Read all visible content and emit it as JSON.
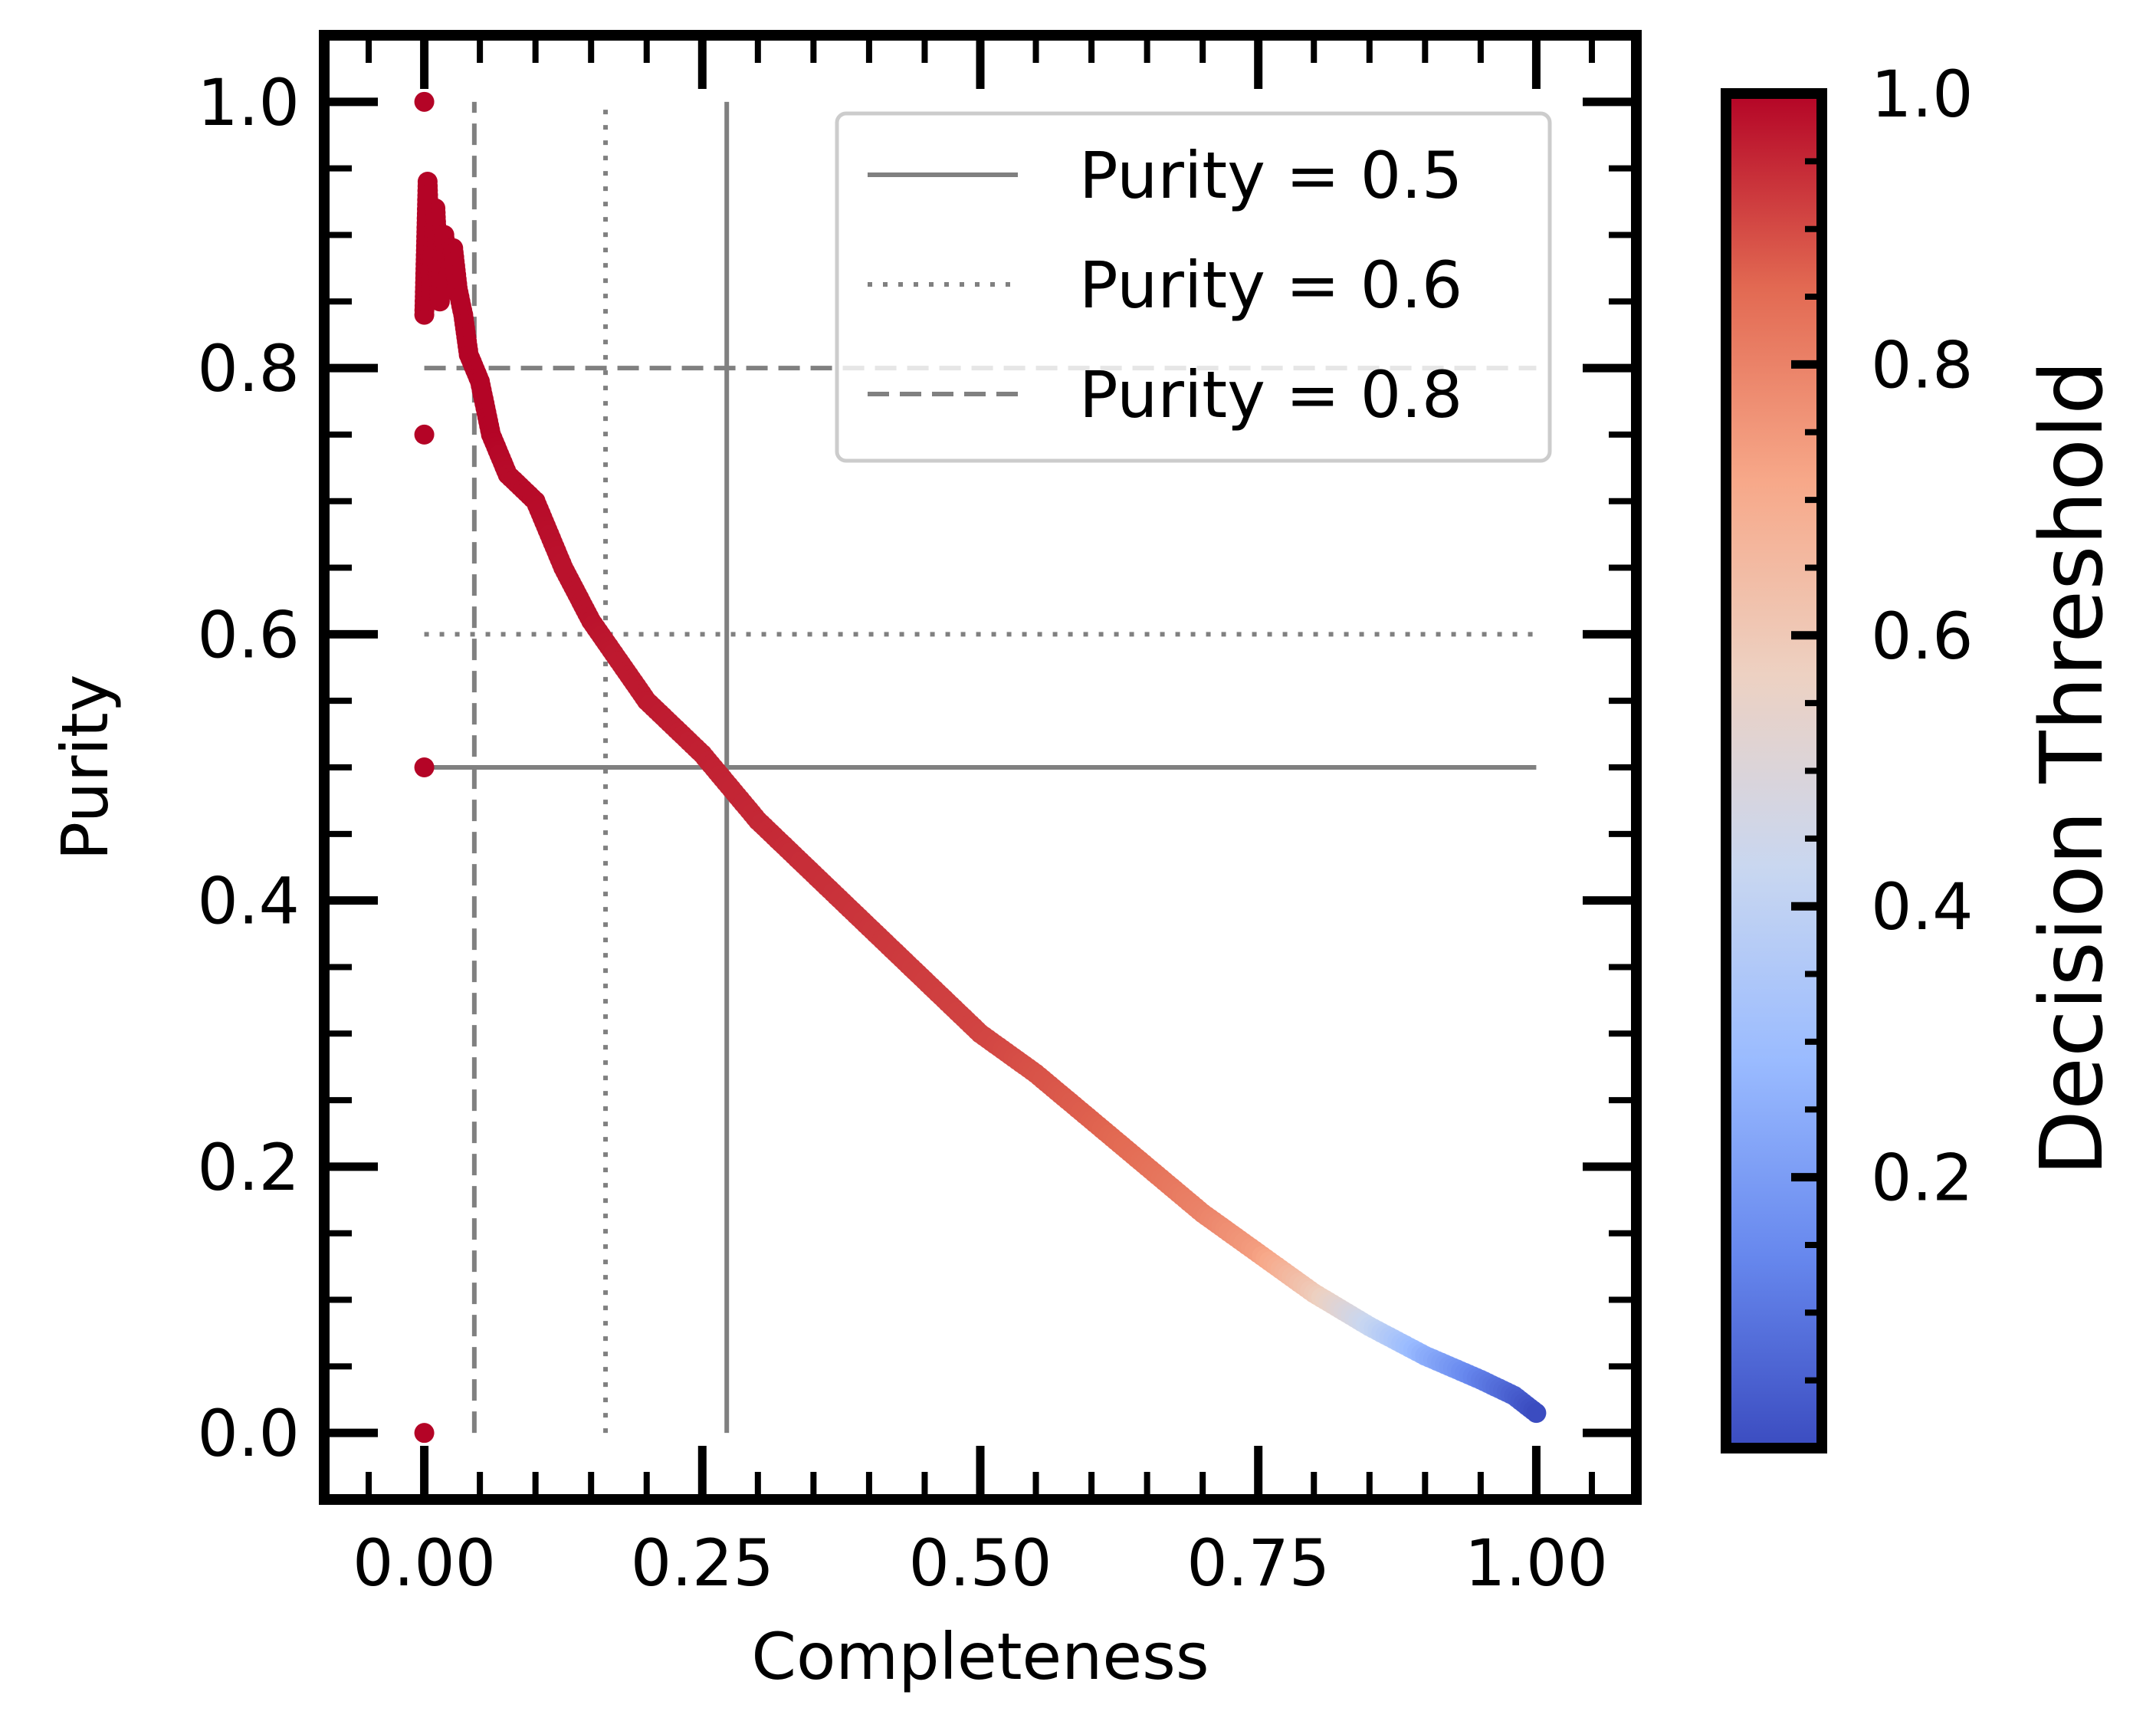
{
  "chart_data": {
    "type": "scatter",
    "title": "",
    "xlabel": "Completeness",
    "ylabel": "Purity",
    "xlim": [
      -0.09,
      1.09
    ],
    "ylim": [
      -0.05,
      1.05
    ],
    "xticks": [
      "0.00",
      "0.25",
      "0.50",
      "0.75",
      "1.00"
    ],
    "xtick_values": [
      0,
      0.25,
      0.5,
      0.75,
      1.0
    ],
    "yticks": [
      "0.0",
      "0.2",
      "0.4",
      "0.6",
      "0.8",
      "1.0"
    ],
    "ytick_values": [
      0,
      0.2,
      0.4,
      0.6,
      0.8,
      1.0
    ],
    "grid": false,
    "legend_position": "top-right",
    "colormap": "coolwarm",
    "colormap_stops": [
      "#3b4cc0",
      "#6788ee",
      "#9abbff",
      "#c9d7f0",
      "#edd1c2",
      "#f7a889",
      "#e26952",
      "#b40426"
    ],
    "colorbar": {
      "label": "Decision Threshold",
      "range": [
        0.0,
        1.0
      ],
      "ticks": [
        "0.2",
        "0.4",
        "0.6",
        "0.8",
        "1.0"
      ],
      "tick_values": [
        0.2,
        0.4,
        0.6,
        0.8,
        1.0
      ]
    },
    "series": [
      {
        "description_role": "purity-completeness curve colored by threshold",
        "points": [
          {
            "x": 0.0,
            "y": 1.0,
            "t": 1.0
          },
          {
            "x": 0.0,
            "y": 0.75,
            "t": 1.0
          },
          {
            "x": 0.0,
            "y": 0.5,
            "t": 1.0
          },
          {
            "x": 0.0,
            "y": 0.0,
            "t": 1.0
          },
          {
            "x": 0.0,
            "y": 0.84,
            "t": 1.0
          },
          {
            "x": 0.003,
            "y": 0.94,
            "t": 1.0
          },
          {
            "x": 0.006,
            "y": 0.86,
            "t": 1.0
          },
          {
            "x": 0.01,
            "y": 0.92,
            "t": 1.0
          },
          {
            "x": 0.014,
            "y": 0.85,
            "t": 1.0
          },
          {
            "x": 0.018,
            "y": 0.9,
            "t": 1.0
          },
          {
            "x": 0.022,
            "y": 0.87,
            "t": 1.0
          },
          {
            "x": 0.026,
            "y": 0.89,
            "t": 1.0
          },
          {
            "x": 0.03,
            "y": 0.86,
            "t": 1.0
          },
          {
            "x": 0.035,
            "y": 0.84,
            "t": 1.0
          },
          {
            "x": 0.04,
            "y": 0.81,
            "t": 1.0
          },
          {
            "x": 0.05,
            "y": 0.79,
            "t": 1.0
          },
          {
            "x": 0.06,
            "y": 0.75,
            "t": 1.0
          },
          {
            "x": 0.075,
            "y": 0.72,
            "t": 0.99
          },
          {
            "x": 0.1,
            "y": 0.7,
            "t": 0.99
          },
          {
            "x": 0.125,
            "y": 0.65,
            "t": 0.98
          },
          {
            "x": 0.15,
            "y": 0.61,
            "t": 0.98
          },
          {
            "x": 0.175,
            "y": 0.58,
            "t": 0.97
          },
          {
            "x": 0.2,
            "y": 0.55,
            "t": 0.97
          },
          {
            "x": 0.25,
            "y": 0.51,
            "t": 0.96
          },
          {
            "x": 0.3,
            "y": 0.46,
            "t": 0.95
          },
          {
            "x": 0.35,
            "y": 0.42,
            "t": 0.94
          },
          {
            "x": 0.4,
            "y": 0.38,
            "t": 0.93
          },
          {
            "x": 0.45,
            "y": 0.34,
            "t": 0.92
          },
          {
            "x": 0.5,
            "y": 0.3,
            "t": 0.91
          },
          {
            "x": 0.55,
            "y": 0.27,
            "t": 0.89
          },
          {
            "x": 0.6,
            "y": 0.235,
            "t": 0.87
          },
          {
            "x": 0.65,
            "y": 0.2,
            "t": 0.84
          },
          {
            "x": 0.7,
            "y": 0.165,
            "t": 0.8
          },
          {
            "x": 0.75,
            "y": 0.135,
            "t": 0.74
          },
          {
            "x": 0.8,
            "y": 0.105,
            "t": 0.6
          },
          {
            "x": 0.85,
            "y": 0.08,
            "t": 0.42
          },
          {
            "x": 0.9,
            "y": 0.058,
            "t": 0.25
          },
          {
            "x": 0.95,
            "y": 0.04,
            "t": 0.12
          },
          {
            "x": 0.98,
            "y": 0.028,
            "t": 0.05
          },
          {
            "x": 1.0,
            "y": 0.015,
            "t": 0.0
          }
        ]
      }
    ],
    "reference_lines": [
      {
        "label": "Purity = 0.5",
        "style": "solid",
        "purity": 0.5,
        "completeness": 0.272
      },
      {
        "label": "Purity = 0.6",
        "style": "dotted",
        "purity": 0.6,
        "completeness": 0.163
      },
      {
        "label": "Purity = 0.8",
        "style": "dashed",
        "purity": 0.8,
        "completeness": 0.045
      }
    ],
    "reference_color": "#808080",
    "reference_extent": {
      "x_min": 0.0,
      "x_max": 1.0,
      "y_min": 0.0,
      "y_max": 1.0
    }
  }
}
